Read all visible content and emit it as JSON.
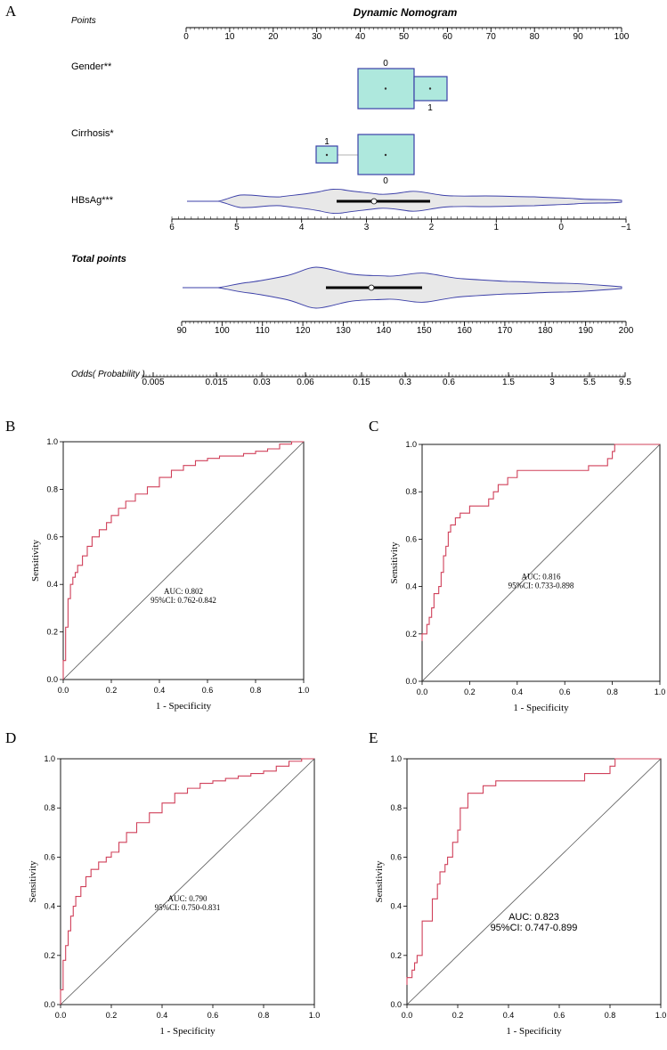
{
  "panel_letters": {
    "a": "A",
    "b": "B",
    "c": "C",
    "d": "D",
    "e": "E"
  },
  "nomogram": {
    "title": "Dynamic Nomogram",
    "points_label": "Points",
    "points_ticks": [
      "0",
      "10",
      "20",
      "30",
      "40",
      "50",
      "60",
      "70",
      "80",
      "90",
      "100"
    ],
    "gender": {
      "label": "Gender**",
      "level0": "0",
      "level1": "1"
    },
    "cirrhosis": {
      "label": "Cirrhosis*",
      "level0": "0",
      "level1": "1"
    },
    "hbsag": {
      "label": "HBsAg***",
      "ticks": [
        "6",
        "5",
        "4",
        "3",
        "2",
        "1",
        "0",
        "−1"
      ]
    },
    "total_points": {
      "label": "Total points",
      "ticks": [
        "90",
        "100",
        "110",
        "120",
        "130",
        "140",
        "150",
        "160",
        "170",
        "180",
        "190",
        "200"
      ]
    },
    "odds": {
      "label": "Odds( Probability )",
      "ticks": [
        "0.005",
        "0.015",
        "0.03",
        "0.06",
        "0.15",
        "0.3",
        "0.6",
        "1.5",
        "3",
        "5.5",
        "9.5"
      ]
    },
    "colors": {
      "box_fill": "#aee8dd",
      "box_stroke": "#3b3fa8",
      "violin_fill": "#e8e8e8",
      "violin_stroke": "#3b3fa8"
    }
  },
  "roc": {
    "b": {
      "auc": "AUC: 0.802",
      "ci": "95%CI: 0.762-0.842",
      "xlabel": "1 - Specificity",
      "ylabel": "Sensitivity"
    },
    "c": {
      "auc": "AUC: 0.816",
      "ci": "95%CI: 0.733-0.898",
      "xlabel": "1 - Specificity",
      "ylabel": "Sensitivity"
    },
    "d": {
      "auc": "AUC: 0.790",
      "ci": "95%CI: 0.750-0.831",
      "xlabel": "1 - Specificity",
      "ylabel": "Sensitivity"
    },
    "e": {
      "auc": "AUC: 0.823",
      "ci": "95%CI: 0.747-0.899",
      "xlabel": "1 - Specificity",
      "ylabel": "Sensitivity"
    },
    "tick_labels": [
      "0.0",
      "0.2",
      "0.4",
      "0.6",
      "0.8",
      "1.0"
    ],
    "curve_color": "#d0405a"
  },
  "chart_data": [
    {
      "type": "nomogram",
      "title": "Dynamic Nomogram",
      "axes": [
        {
          "name": "Points",
          "range": [
            0,
            100
          ]
        },
        {
          "name": "Gender**",
          "levels": {
            "0": 46,
            "1": 56
          }
        },
        {
          "name": "Cirrhosis*",
          "levels": {
            "1": 32.5,
            "0": 46
          }
        },
        {
          "name": "HBsAg***",
          "range": [
            6,
            -1
          ],
          "median": 2.7
        },
        {
          "name": "Total points",
          "range": [
            90,
            200
          ],
          "median": 137
        },
        {
          "name": "Odds( Probability )",
          "ticks": [
            0.005,
            0.015,
            0.03,
            0.06,
            0.15,
            0.3,
            0.6,
            1.5,
            3,
            5.5,
            9.5
          ]
        }
      ]
    },
    {
      "type": "line",
      "panel": "B",
      "title": "AUC: 0.802",
      "xlabel": "1 - Specificity",
      "ylabel": "Sensitivity",
      "xlim": [
        0,
        1
      ],
      "ylim": [
        0,
        1
      ],
      "series": [
        {
          "name": "ROC",
          "x": [
            0,
            0,
            0.01,
            0.01,
            0.02,
            0.02,
            0.03,
            0.04,
            0.05,
            0.06,
            0.08,
            0.1,
            0.12,
            0.15,
            0.18,
            0.2,
            0.23,
            0.26,
            0.3,
            0.35,
            0.4,
            0.45,
            0.5,
            0.55,
            0.6,
            0.65,
            0.7,
            0.75,
            0.8,
            0.85,
            0.9,
            0.95
          ],
          "y": [
            0,
            0.08,
            0.15,
            0.22,
            0.28,
            0.34,
            0.4,
            0.43,
            0.45,
            0.48,
            0.52,
            0.56,
            0.6,
            0.63,
            0.66,
            0.69,
            0.72,
            0.75,
            0.78,
            0.81,
            0.85,
            0.88,
            0.9,
            0.92,
            0.93,
            0.94,
            0.94,
            0.95,
            0.96,
            0.97,
            0.99,
            1.0
          ]
        }
      ]
    },
    {
      "type": "line",
      "panel": "C",
      "title": "AUC: 0.816",
      "xlabel": "1 - Specificity",
      "ylabel": "Sensitivity",
      "xlim": [
        0,
        1
      ],
      "ylim": [
        0,
        1
      ],
      "series": [
        {
          "name": "ROC",
          "x": [
            0,
            0,
            0.02,
            0.03,
            0.04,
            0.05,
            0.07,
            0.08,
            0.09,
            0.1,
            0.11,
            0.12,
            0.14,
            0.16,
            0.18,
            0.2,
            0.24,
            0.28,
            0.3,
            0.32,
            0.36,
            0.4,
            0.5,
            0.6,
            0.7,
            0.75,
            0.78,
            0.8,
            0.81
          ],
          "y": [
            0.17,
            0.2,
            0.24,
            0.27,
            0.31,
            0.37,
            0.4,
            0.46,
            0.53,
            0.57,
            0.63,
            0.66,
            0.69,
            0.71,
            0.71,
            0.74,
            0.74,
            0.77,
            0.8,
            0.83,
            0.86,
            0.89,
            0.89,
            0.89,
            0.91,
            0.91,
            0.94,
            0.97,
            1.0
          ]
        }
      ]
    },
    {
      "type": "line",
      "panel": "D",
      "title": "AUC: 0.790",
      "xlabel": "1 - Specificity",
      "ylabel": "Sensitivity",
      "xlim": [
        0,
        1
      ],
      "ylim": [
        0,
        1
      ],
      "series": [
        {
          "name": "ROC",
          "x": [
            0,
            0,
            0.01,
            0.01,
            0.02,
            0.03,
            0.04,
            0.05,
            0.06,
            0.08,
            0.1,
            0.12,
            0.15,
            0.18,
            0.2,
            0.23,
            0.26,
            0.3,
            0.35,
            0.4,
            0.45,
            0.5,
            0.55,
            0.6,
            0.65,
            0.7,
            0.75,
            0.8,
            0.85,
            0.9,
            0.95
          ],
          "y": [
            0,
            0.06,
            0.12,
            0.18,
            0.24,
            0.3,
            0.36,
            0.4,
            0.44,
            0.48,
            0.52,
            0.55,
            0.58,
            0.6,
            0.62,
            0.66,
            0.7,
            0.74,
            0.78,
            0.82,
            0.86,
            0.88,
            0.9,
            0.91,
            0.92,
            0.93,
            0.94,
            0.95,
            0.97,
            0.99,
            1.0
          ]
        }
      ]
    },
    {
      "type": "line",
      "panel": "E",
      "title": "AUC: 0.823",
      "xlabel": "1 - Specificity",
      "ylabel": "Sensitivity",
      "xlim": [
        0,
        1
      ],
      "ylim": [
        0,
        1
      ],
      "series": [
        {
          "name": "ROC",
          "x": [
            0,
            0,
            0.02,
            0.03,
            0.04,
            0.05,
            0.06,
            0.07,
            0.1,
            0.1,
            0.12,
            0.13,
            0.15,
            0.16,
            0.18,
            0.2,
            0.21,
            0.24,
            0.27,
            0.3,
            0.35,
            0.4,
            0.5,
            0.6,
            0.7,
            0.78,
            0.8,
            0.82
          ],
          "y": [
            0.08,
            0.11,
            0.14,
            0.17,
            0.2,
            0.2,
            0.34,
            0.34,
            0.37,
            0.43,
            0.49,
            0.54,
            0.57,
            0.6,
            0.66,
            0.71,
            0.8,
            0.86,
            0.86,
            0.89,
            0.91,
            0.91,
            0.91,
            0.91,
            0.94,
            0.94,
            0.97,
            1.0
          ]
        }
      ]
    }
  ]
}
